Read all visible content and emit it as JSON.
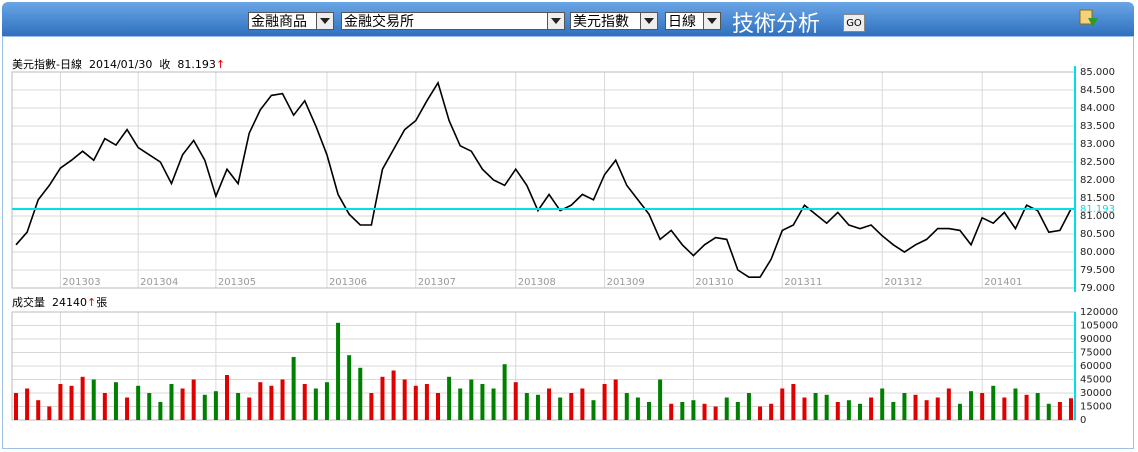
{
  "toolbar": {
    "product": "金融商品",
    "exchange": "金融交易所",
    "symbol": "美元指數",
    "period": "日線",
    "heading": "技術分析",
    "go": "GO"
  },
  "chart_data": [
    {
      "type": "line",
      "title": "美元指數-日線",
      "date": "2014/01/30",
      "close_label": "收",
      "close": 81.193,
      "arrow": "↑",
      "color": "#000000",
      "close_line_color": "#00e0e8",
      "arrow_color": "#e00000",
      "grid": true,
      "categories": [
        null,
        null,
        null,
        null,
        "201303",
        null,
        null,
        null,
        null,
        null,
        null,
        "201304",
        null,
        null,
        null,
        null,
        null,
        null,
        "201305",
        null,
        null,
        null,
        null,
        null,
        null,
        null,
        null,
        null,
        "201306",
        null,
        null,
        null,
        null,
        null,
        null,
        null,
        "201307",
        null,
        null,
        null,
        null,
        null,
        null,
        null,
        null,
        "201308",
        null,
        null,
        null,
        null,
        null,
        null,
        null,
        "201309",
        null,
        null,
        null,
        null,
        null,
        null,
        null,
        "201310",
        null,
        null,
        null,
        null,
        null,
        null,
        null,
        "201311",
        null,
        null,
        null,
        null,
        null,
        null,
        null,
        null,
        "201312",
        null,
        null,
        null,
        null,
        null,
        null,
        null,
        null,
        "201401",
        null,
        null,
        null,
        null,
        null,
        null,
        null,
        null
      ],
      "values": [
        80.2,
        80.55,
        81.45,
        81.85,
        82.33,
        82.55,
        82.8,
        82.55,
        83.15,
        82.97,
        83.4,
        82.9,
        82.7,
        82.5,
        81.9,
        82.7,
        83.1,
        82.55,
        81.55,
        82.3,
        81.9,
        83.3,
        83.95,
        84.35,
        84.4,
        83.8,
        84.2,
        83.5,
        82.7,
        81.6,
        81.05,
        80.75,
        80.75,
        82.3,
        82.85,
        83.4,
        83.65,
        84.2,
        84.7,
        83.65,
        82.95,
        82.8,
        82.3,
        82.0,
        81.85,
        82.3,
        81.85,
        81.15,
        81.6,
        81.15,
        81.3,
        81.6,
        81.45,
        82.15,
        82.55,
        81.85,
        81.45,
        81.05,
        80.35,
        80.6,
        80.2,
        79.9,
        80.2,
        80.4,
        80.35,
        79.5,
        79.3,
        79.3,
        79.8,
        80.6,
        80.75,
        81.3,
        81.05,
        80.8,
        81.1,
        80.75,
        80.65,
        80.75,
        80.45,
        80.2,
        80.0,
        80.2,
        80.35,
        80.65,
        80.65,
        80.6,
        80.2,
        80.95,
        80.8,
        81.1,
        80.65,
        81.3,
        81.15,
        80.55,
        80.6,
        81.193
      ],
      "ylim": [
        79,
        85
      ],
      "yticks": [
        {
          "value": 79,
          "label": "79.000"
        },
        {
          "value": 79.5,
          "label": "79.500"
        },
        {
          "value": 80,
          "label": "80.000"
        },
        {
          "value": 80.5,
          "label": "80.500"
        },
        {
          "value": 81,
          "label": "81.000"
        },
        {
          "value": 81.5,
          "label": "81.500"
        },
        {
          "value": 82,
          "label": "82.000"
        },
        {
          "value": 82.5,
          "label": "82.500"
        },
        {
          "value": 83,
          "label": "83.000"
        },
        {
          "value": 83.5,
          "label": "83.500"
        },
        {
          "value": 84,
          "label": "84.000"
        },
        {
          "value": 84.5,
          "label": "84.500"
        },
        {
          "value": 85,
          "label": "85.000"
        }
      ]
    },
    {
      "type": "bar",
      "title": "成交量",
      "last": 24140,
      "arrow": "↑",
      "unit": "張",
      "up_color": "#e00000",
      "down_color": "#008000",
      "arrow_color": "#e00000",
      "grid": true,
      "values": [
        30000,
        35000,
        22000,
        15000,
        40000,
        38000,
        48000,
        45000,
        30000,
        42000,
        25000,
        38000,
        30000,
        20000,
        40000,
        35000,
        45000,
        28000,
        32000,
        50000,
        30000,
        25000,
        42000,
        38000,
        45000,
        70000,
        40000,
        35000,
        42000,
        108000,
        72000,
        58000,
        30000,
        48000,
        55000,
        45000,
        38000,
        40000,
        30000,
        48000,
        35000,
        45000,
        40000,
        35000,
        62000,
        42000,
        30000,
        28000,
        35000,
        25000,
        30000,
        35000,
        22000,
        40000,
        45000,
        30000,
        25000,
        20000,
        45000,
        18000,
        20000,
        22000,
        18000,
        15000,
        25000,
        20000,
        30000,
        15000,
        18000,
        35000,
        40000,
        25000,
        30000,
        28000,
        20000,
        22000,
        18000,
        25000,
        35000,
        20000,
        30000,
        28000,
        22000,
        25000,
        35000,
        18000,
        32000,
        30000,
        38000,
        25000,
        35000,
        28000,
        30000,
        18000,
        20000,
        24140
      ],
      "ylim": [
        0,
        120000
      ],
      "yticks": [
        0,
        15000,
        30000,
        45000,
        60000,
        75000,
        90000,
        105000,
        120000
      ]
    }
  ]
}
